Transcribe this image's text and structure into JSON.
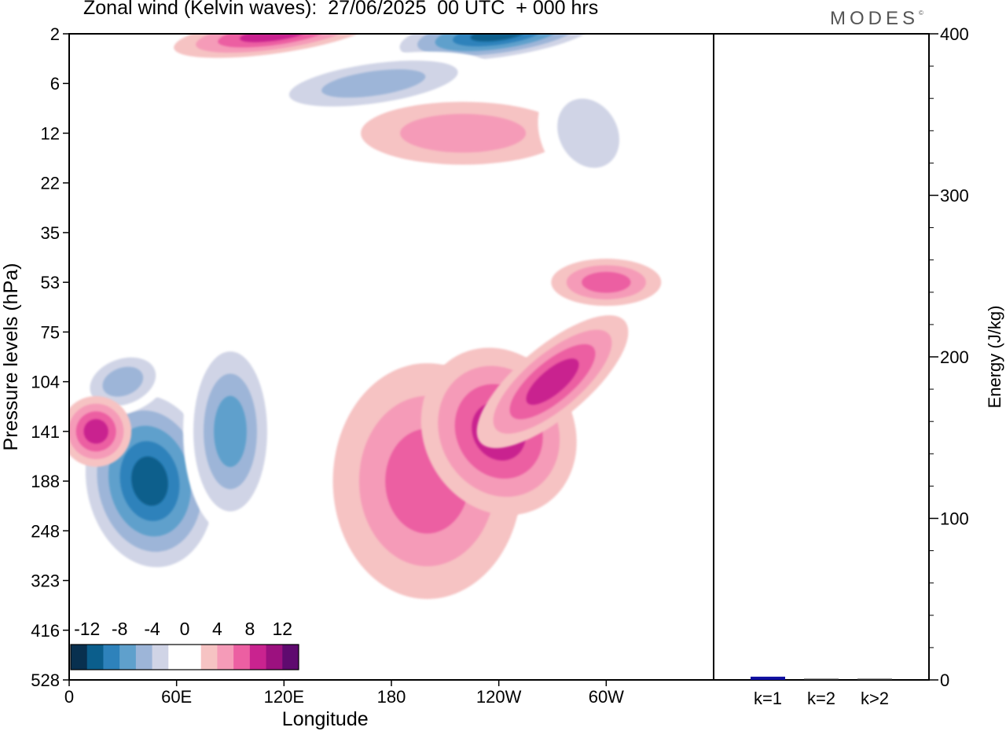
{
  "header": {
    "title": "Zonal wind (Kelvin waves):  27/06/2025  00 UTC  + 000 hrs",
    "logo": "MODES",
    "logo_mark": "©"
  },
  "colors": {
    "palette": [
      "#08304f",
      "#0b5e8c",
      "#2e82bb",
      "#5fa0cc",
      "#9db5d8",
      "#d0d4e6",
      "#ffffff",
      "#ffffff",
      "#f6c3c3",
      "#f59bb8",
      "#ec5fa2",
      "#c9238f",
      "#9c117f",
      "#5f0a6f"
    ],
    "bar": "#1010a0"
  },
  "chart_data": [
    {
      "type": "heatmap",
      "title": "Zonal wind (Kelvin waves)",
      "xlabel": "Longitude",
      "ylabel": "Pressure levels (hPa)",
      "x_ticks": [
        "0",
        "60E",
        "120E",
        "180",
        "120W",
        "60W"
      ],
      "y_ticks": [
        "2",
        "6",
        "12",
        "22",
        "35",
        "53",
        "75",
        "104",
        "141",
        "188",
        "248",
        "323",
        "416",
        "528"
      ],
      "colorbar_labels": [
        "-12",
        "-8",
        "-4",
        "0",
        "4",
        "8",
        "12"
      ],
      "features": [
        {
          "lon": 45,
          "level": "188",
          "value": -12
        },
        {
          "lon": 90,
          "level": "141",
          "value": -8
        },
        {
          "lon": 30,
          "level": "104",
          "value": -6
        },
        {
          "lon": 15,
          "level": "141",
          "value": 8
        },
        {
          "lon": 200,
          "level": "188",
          "value": 6
        },
        {
          "lon": 240,
          "level": "141",
          "value": 9
        },
        {
          "lon": 270,
          "level": "104",
          "value": 8
        },
        {
          "lon": 115,
          "level": "2",
          "value": 8
        },
        {
          "lon": 240,
          "level": "2",
          "value": -12
        },
        {
          "lon": 170,
          "level": "6",
          "value": -6
        },
        {
          "lon": 220,
          "level": "12",
          "value": 5
        },
        {
          "lon": 300,
          "level": "53",
          "value": 6
        },
        {
          "lon": 290,
          "level": "12",
          "value": -4
        }
      ]
    },
    {
      "type": "bar",
      "categories": [
        "k=1",
        "k=2",
        "k>2"
      ],
      "values": [
        2,
        0.5,
        0.5
      ],
      "ylabel": "Energy (J/kg)",
      "ylim": [
        0,
        400
      ],
      "y_ticks": [
        "0",
        "100",
        "200",
        "300",
        "400"
      ]
    }
  ]
}
